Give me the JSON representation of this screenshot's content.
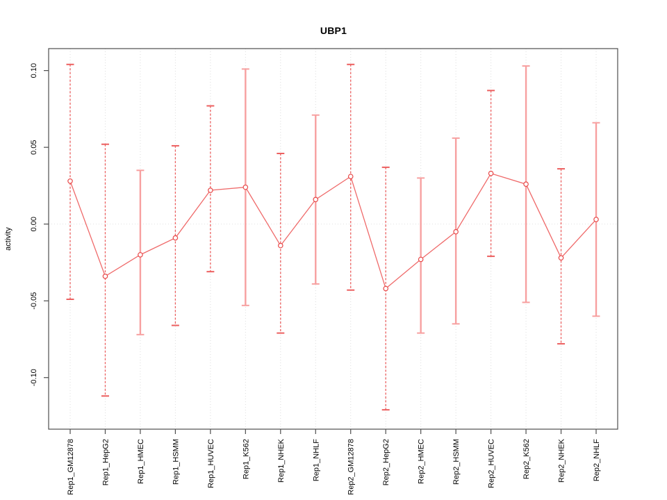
{
  "figure": {
    "background": "#ffffff"
  },
  "chart_data": {
    "type": "line",
    "subtype": "points-with-error-bars",
    "title": "UBP1",
    "xlabel": "",
    "ylabel": "activity",
    "ylim": [
      -0.1336,
      0.1143
    ],
    "yticks": [
      0.1,
      0.05,
      0.0,
      -0.05,
      -0.1
    ],
    "ytick_labels": [
      "0.10",
      "0.05",
      "0.00",
      "-0.05",
      "-0.10"
    ],
    "grid": "dotted vertical gridline per category; dotted horizontal line at y=0",
    "legend": "none",
    "categories": [
      "Rep1_GM12878",
      "Rep1_HepG2",
      "Rep1_HMEC",
      "Rep1_HSMM",
      "Rep1_HUVEC",
      "Rep1_K562",
      "Rep1_NHEK",
      "Rep1_NHLF",
      "Rep2_GM12878",
      "Rep2_HepG2",
      "Rep2_HMEC",
      "Rep2_HSMM",
      "Rep2_HUVEC",
      "Rep2_K562",
      "Rep2_NHEK",
      "Rep2_NHLF"
    ],
    "series": [
      {
        "name": "activity",
        "values": [
          0.028,
          -0.034,
          -0.02,
          -0.009,
          0.022,
          0.024,
          -0.014,
          0.016,
          0.031,
          -0.042,
          -0.023,
          -0.005,
          0.033,
          0.026,
          -0.022,
          0.003
        ],
        "error_high": [
          0.104,
          0.052,
          0.035,
          0.051,
          0.077,
          0.101,
          0.046,
          0.071,
          0.104,
          0.037,
          0.03,
          0.056,
          0.087,
          0.103,
          0.036,
          0.066
        ],
        "error_low": [
          -0.049,
          -0.112,
          -0.072,
          -0.066,
          -0.031,
          -0.053,
          -0.071,
          -0.039,
          -0.043,
          -0.121,
          -0.071,
          -0.065,
          -0.021,
          -0.051,
          -0.078,
          -0.06
        ],
        "bar_styles": [
          "dashed",
          "dashed",
          "solid",
          "dashed",
          "dashed",
          "solid",
          "dashed",
          "solid",
          "dashed",
          "dashed",
          "solid",
          "solid",
          "dashed",
          "solid",
          "dashed",
          "solid"
        ]
      }
    ],
    "colors": {
      "line": "#ef6a6a",
      "marker": "#e84848",
      "marker_fill": "#ffffff",
      "error_bar_dashed": "#ec5f5f",
      "error_bar_solid": "#f7a0a0",
      "grid": "#dcdcdc",
      "zero_line": "#e0e0e0",
      "box": "#4d4d4d",
      "tick": "#4d4d4d",
      "text": "#000000"
    }
  }
}
